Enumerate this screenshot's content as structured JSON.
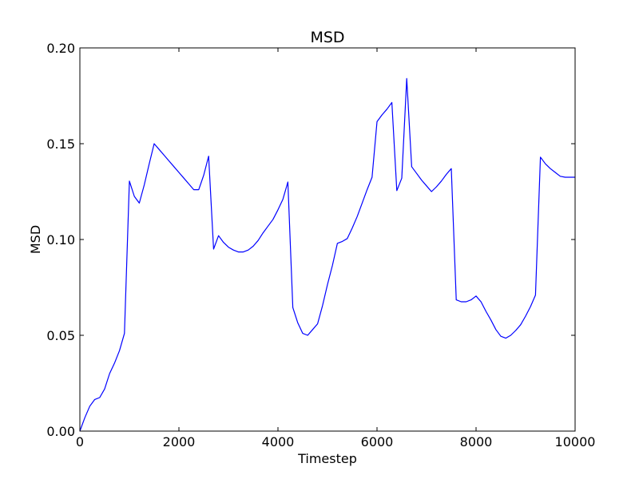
{
  "chart_data": {
    "type": "line",
    "title": "MSD",
    "xlabel": "Timestep",
    "ylabel": "MSD",
    "xlim": [
      0,
      10000
    ],
    "ylim": [
      0.0,
      0.2
    ],
    "x_ticks": [
      0,
      2000,
      4000,
      6000,
      8000,
      10000
    ],
    "x_tick_labels": [
      "0",
      "2000",
      "4000",
      "6000",
      "8000",
      "10000"
    ],
    "y_ticks": [
      0.0,
      0.05,
      0.1,
      0.15,
      0.2
    ],
    "y_tick_labels": [
      "0.00",
      "0.05",
      "0.10",
      "0.15",
      "0.20"
    ],
    "grid": false,
    "legend": "none",
    "series_color": "#0000ff",
    "series": [
      {
        "x": [
          0,
          100,
          200,
          300,
          400,
          500,
          600,
          700,
          800,
          900,
          1000,
          1100,
          1200,
          1300,
          1400,
          1500,
          1600,
          1700,
          1800,
          1900,
          2000,
          2100,
          2200,
          2300,
          2400,
          2500,
          2600,
          2700,
          2800,
          2900,
          3000,
          3100,
          3200,
          3300,
          3400,
          3500,
          3600,
          3700,
          3800,
          3900,
          4000,
          4100,
          4200,
          4300,
          4400,
          4500,
          4600,
          4700,
          4800,
          4900,
          5000,
          5100,
          5200,
          5300,
          5400,
          5500,
          5600,
          5700,
          5800,
          5900,
          6000,
          6100,
          6200,
          6300,
          6400,
          6500,
          6600,
          6700,
          6800,
          6900,
          7000,
          7100,
          7200,
          7300,
          7400,
          7500,
          7600,
          7700,
          7800,
          7900,
          8000,
          8100,
          8200,
          8300,
          8400,
          8500,
          8600,
          8700,
          8800,
          8900,
          9000,
          9100,
          9200,
          9300,
          9400,
          9500,
          9600,
          9700,
          9800,
          9900,
          10000
        ],
        "y": [
          0.0,
          0.007,
          0.013,
          0.0165,
          0.0175,
          0.022,
          0.03,
          0.0355,
          0.042,
          0.051,
          0.1305,
          0.1225,
          0.119,
          0.1285,
          0.1395,
          0.15,
          0.147,
          0.144,
          0.141,
          0.138,
          0.135,
          0.132,
          0.129,
          0.126,
          0.126,
          0.1335,
          0.1435,
          0.095,
          0.102,
          0.0985,
          0.096,
          0.0945,
          0.0935,
          0.0935,
          0.0945,
          0.0965,
          0.0995,
          0.1035,
          0.107,
          0.1105,
          0.1155,
          0.121,
          0.13,
          0.0645,
          0.0565,
          0.051,
          0.05,
          0.053,
          0.056,
          0.0655,
          0.0765,
          0.0865,
          0.098,
          0.099,
          0.1005,
          0.106,
          0.112,
          0.119,
          0.126,
          0.1325,
          0.1615,
          0.165,
          0.168,
          0.1715,
          0.1255,
          0.132,
          0.184,
          0.138,
          0.1345,
          0.131,
          0.128,
          0.125,
          0.1275,
          0.1305,
          0.134,
          0.137,
          0.0685,
          0.0675,
          0.0675,
          0.0685,
          0.0705,
          0.0675,
          0.0625,
          0.058,
          0.053,
          0.0495,
          0.0485,
          0.05,
          0.0525,
          0.0555,
          0.06,
          0.065,
          0.071,
          0.143,
          0.1395,
          0.137,
          0.135,
          0.133,
          0.1325,
          0.1325,
          0.1325
        ]
      }
    ]
  }
}
